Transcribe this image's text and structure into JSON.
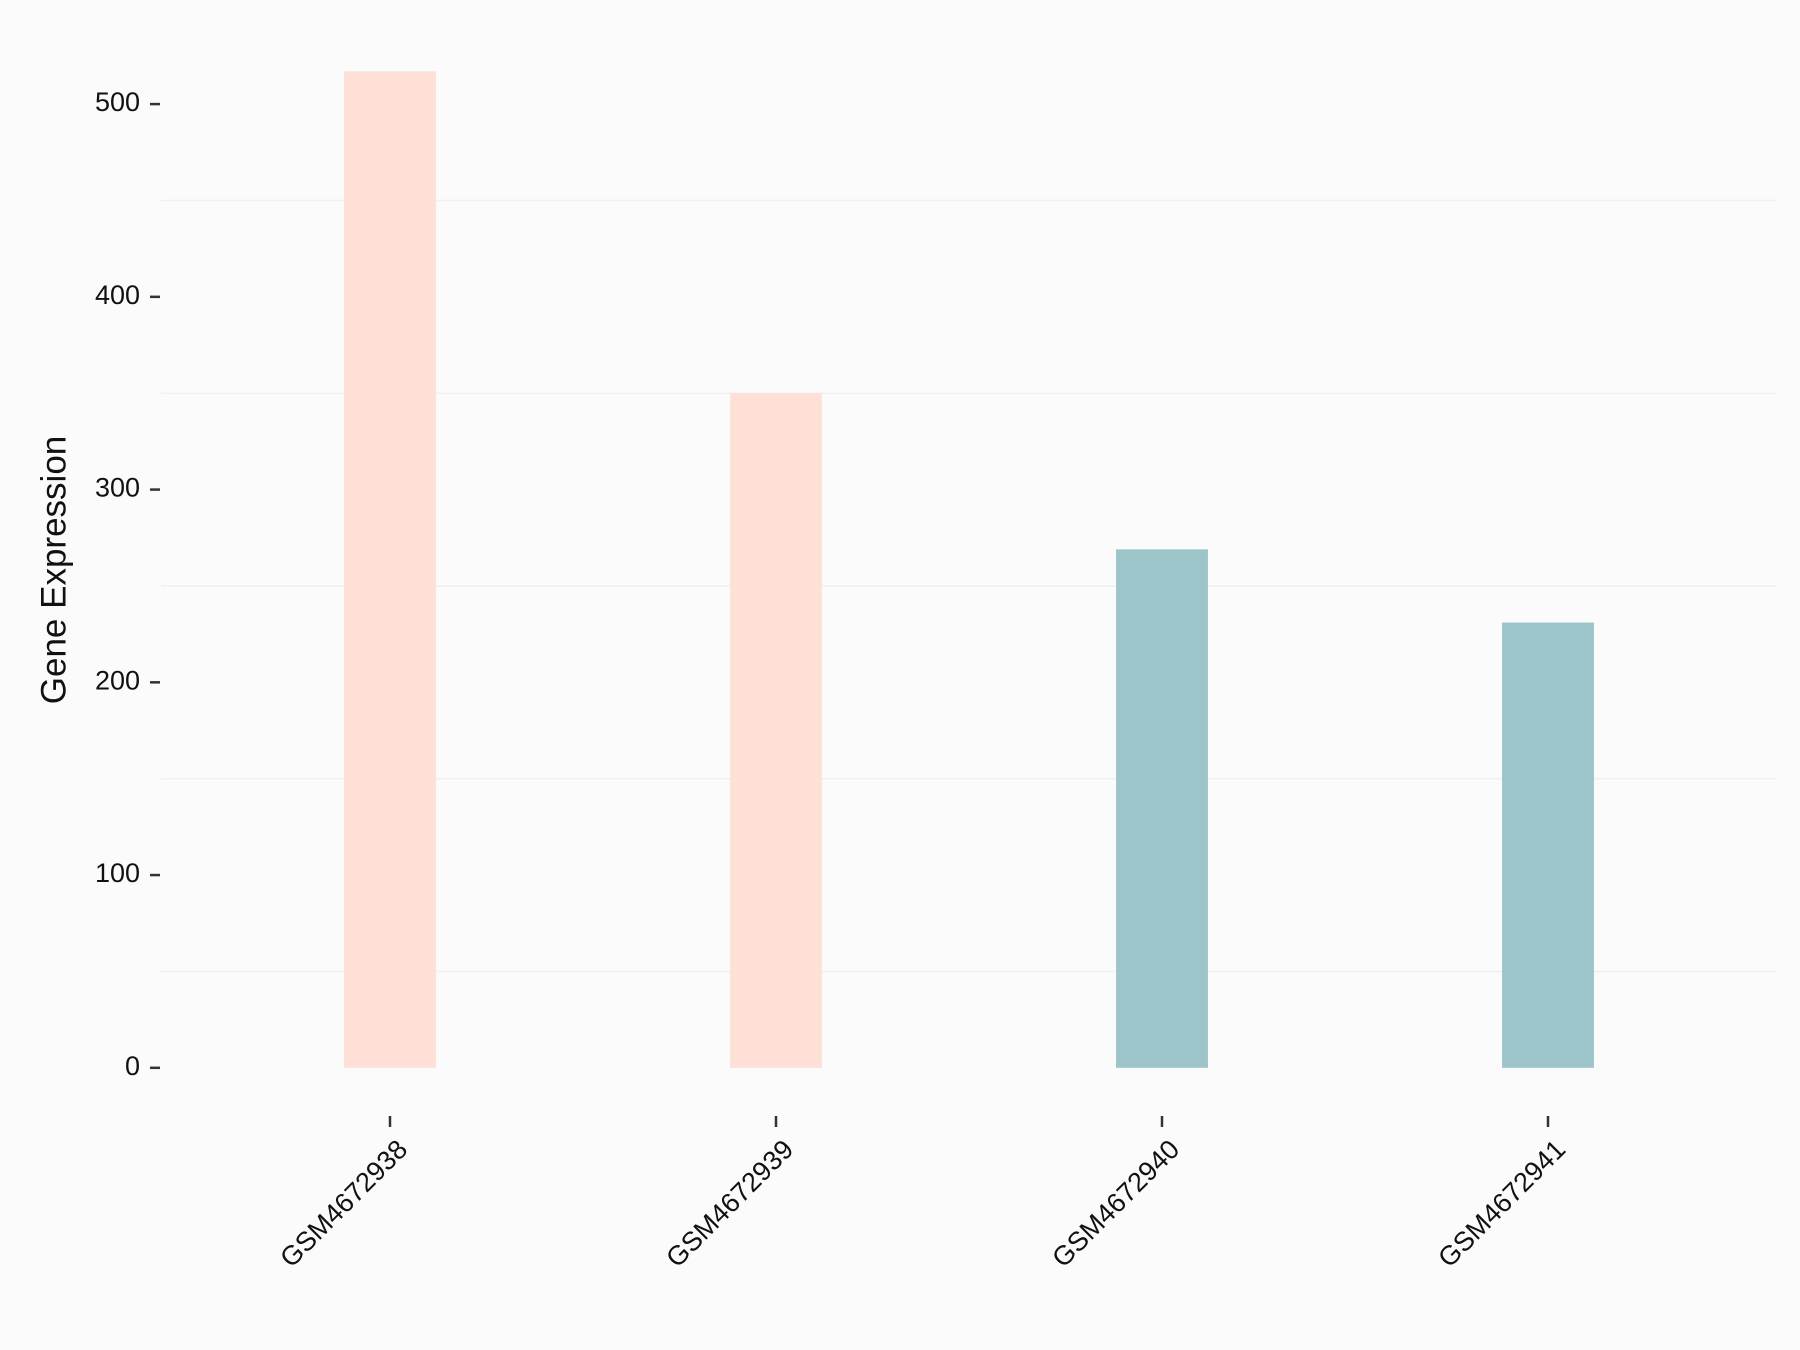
{
  "chart_data": {
    "type": "bar",
    "y_label": "Gene Expression",
    "categories": [
      "GSM4672938",
      "GSM4672939",
      "GSM4672940",
      "GSM4672941"
    ],
    "values": [
      517,
      350,
      269,
      231
    ],
    "colors": [
      "#ffe0d6",
      "#ffe0d6",
      "#9dc4c8",
      "#9dc4c8"
    ],
    "ylim": [
      -25,
      540
    ],
    "yticks": [
      0,
      100,
      200,
      300,
      400,
      500
    ],
    "minor_yticks": [
      50,
      150,
      250,
      350,
      450
    ],
    "grid": true
  }
}
